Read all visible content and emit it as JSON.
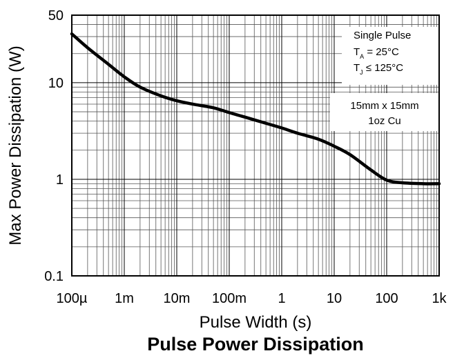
{
  "chart_data": {
    "type": "line",
    "title": "Pulse Power Dissipation",
    "xlabel": "Pulse Width (s)",
    "ylabel": "Max Power Dissipation (W)",
    "x_scale": "log",
    "y_scale": "log",
    "xlim": [
      0.0001,
      1000
    ],
    "ylim": [
      0.1,
      50
    ],
    "grid": true,
    "x_ticks": [
      {
        "value": 0.0001,
        "label": "100µ"
      },
      {
        "value": 0.001,
        "label": "1m"
      },
      {
        "value": 0.01,
        "label": "10m"
      },
      {
        "value": 0.1,
        "label": "100m"
      },
      {
        "value": 1,
        "label": "1"
      },
      {
        "value": 10,
        "label": "10"
      },
      {
        "value": 100,
        "label": "100"
      },
      {
        "value": 1000,
        "label": "1k"
      }
    ],
    "y_ticks": [
      {
        "value": 0.1,
        "label": "0.1"
      },
      {
        "value": 1,
        "label": "1"
      },
      {
        "value": 10,
        "label": "10"
      },
      {
        "value": 50,
        "label": "50"
      }
    ],
    "series": [
      {
        "x": [
          0.0001,
          0.0002,
          0.0005,
          0.001,
          0.002,
          0.005,
          0.01,
          0.02,
          0.05,
          0.1,
          0.2,
          0.5,
          1,
          2,
          5,
          10,
          20,
          50,
          100,
          200,
          500,
          1000
        ],
        "y": [
          32,
          23,
          15.5,
          11.5,
          9,
          7.3,
          6.5,
          6,
          5.5,
          4.9,
          4.4,
          3.8,
          3.4,
          3.0,
          2.6,
          2.2,
          1.8,
          1.25,
          0.98,
          0.92,
          0.9,
          0.9
        ]
      }
    ],
    "annotations": {
      "pulse_box": {
        "line1": "Single Pulse",
        "line2_prefix": "T",
        "line2_sub": "A",
        "line2_text": " = 25°C",
        "line3_prefix": "T",
        "line3_sub": "J",
        "line3_text": " ≤ 125°C"
      },
      "copper_box": {
        "line1": "15mm x 15mm",
        "line2": "1oz Cu"
      }
    }
  }
}
